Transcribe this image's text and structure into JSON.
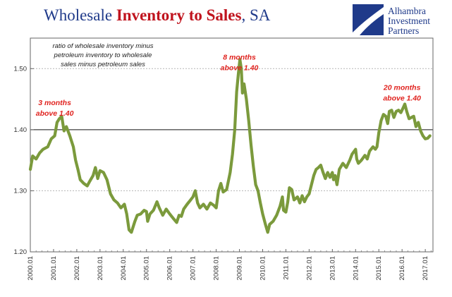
{
  "title": {
    "part1": "Wholesale ",
    "highlight": "Inventory to Sales",
    "part2": ", SA"
  },
  "logo": {
    "line1": "Alhambra",
    "line2": "Investment",
    "line3": "Partners"
  },
  "colors": {
    "line": "#7b9a3c",
    "title": "#1f3a8a",
    "highlight": "#c0141e",
    "annotation": "#e0221e"
  },
  "chart_data": {
    "type": "line",
    "title": "Wholesale Inventory to Sales, SA",
    "note": [
      "ratio of wholesale inventory minus",
      "petroleum inventory to wholesale",
      "sales minus petroleum sales"
    ],
    "xlim": [
      2000.0,
      2017.33
    ],
    "ylim": [
      1.2,
      1.55
    ],
    "yticks": [
      1.2,
      1.3,
      1.4,
      1.5
    ],
    "ytick_labels": [
      "1.20",
      "1.30",
      "1.40",
      "1.50"
    ],
    "xtick_labels": [
      "2000.01",
      "2001.01",
      "2002.01",
      "2003.01",
      "2004.01",
      "2005.01",
      "2006.01",
      "2007.01",
      "2008.01",
      "2009.01",
      "2010.01",
      "2011.01",
      "2012.01",
      "2013.01",
      "2014.01",
      "2015.01",
      "2016.01",
      "2017.01"
    ],
    "reference_line": 1.4,
    "grid": {
      "horizontal_dashed": [
        1.3,
        1.5
      ]
    },
    "annotations": [
      {
        "lines": [
          "3 months",
          "above 1.40"
        ],
        "x": 2001.05,
        "y": 1.44
      },
      {
        "lines": [
          "8 months",
          "above 1.40"
        ],
        "x": 2009.0,
        "y": 1.515
      },
      {
        "lines": [
          "20 months",
          "above 1.40"
        ],
        "x": 2016.0,
        "y": 1.465
      }
    ],
    "series": [
      {
        "values": [
          [
            2000.0,
            1.335
          ],
          [
            2000.1,
            1.357
          ],
          [
            2000.25,
            1.352
          ],
          [
            2000.4,
            1.362
          ],
          [
            2000.55,
            1.368
          ],
          [
            2000.75,
            1.372
          ],
          [
            2000.9,
            1.385
          ],
          [
            2001.05,
            1.39
          ],
          [
            2001.15,
            1.412
          ],
          [
            2001.25,
            1.418
          ],
          [
            2001.35,
            1.422
          ],
          [
            2001.45,
            1.398
          ],
          [
            2001.55,
            1.405
          ],
          [
            2001.7,
            1.39
          ],
          [
            2001.85,
            1.372
          ],
          [
            2001.95,
            1.35
          ],
          [
            2002.05,
            1.335
          ],
          [
            2002.15,
            1.318
          ],
          [
            2002.3,
            1.312
          ],
          [
            2002.45,
            1.308
          ],
          [
            2002.55,
            1.315
          ],
          [
            2002.7,
            1.325
          ],
          [
            2002.8,
            1.338
          ],
          [
            2002.9,
            1.32
          ],
          [
            2003.0,
            1.333
          ],
          [
            2003.15,
            1.33
          ],
          [
            2003.3,
            1.318
          ],
          [
            2003.45,
            1.295
          ],
          [
            2003.6,
            1.285
          ],
          [
            2003.75,
            1.28
          ],
          [
            2003.9,
            1.272
          ],
          [
            2004.05,
            1.278
          ],
          [
            2004.15,
            1.262
          ],
          [
            2004.25,
            1.236
          ],
          [
            2004.35,
            1.232
          ],
          [
            2004.5,
            1.25
          ],
          [
            2004.6,
            1.26
          ],
          [
            2004.75,
            1.262
          ],
          [
            2004.9,
            1.268
          ],
          [
            2005.0,
            1.266
          ],
          [
            2005.05,
            1.25
          ],
          [
            2005.15,
            1.262
          ],
          [
            2005.3,
            1.268
          ],
          [
            2005.45,
            1.282
          ],
          [
            2005.55,
            1.272
          ],
          [
            2005.7,
            1.26
          ],
          [
            2005.85,
            1.27
          ],
          [
            2006.0,
            1.262
          ],
          [
            2006.15,
            1.255
          ],
          [
            2006.3,
            1.248
          ],
          [
            2006.4,
            1.26
          ],
          [
            2006.5,
            1.258
          ],
          [
            2006.6,
            1.27
          ],
          [
            2006.75,
            1.278
          ],
          [
            2006.9,
            1.285
          ],
          [
            2007.0,
            1.29
          ],
          [
            2007.1,
            1.3
          ],
          [
            2007.2,
            1.28
          ],
          [
            2007.3,
            1.272
          ],
          [
            2007.45,
            1.278
          ],
          [
            2007.6,
            1.27
          ],
          [
            2007.75,
            1.28
          ],
          [
            2007.9,
            1.276
          ],
          [
            2008.0,
            1.272
          ],
          [
            2008.1,
            1.3
          ],
          [
            2008.2,
            1.312
          ],
          [
            2008.3,
            1.298
          ],
          [
            2008.45,
            1.302
          ],
          [
            2008.6,
            1.33
          ],
          [
            2008.7,
            1.36
          ],
          [
            2008.8,
            1.4
          ],
          [
            2008.88,
            1.462
          ],
          [
            2008.95,
            1.49
          ],
          [
            2009.02,
            1.515
          ],
          [
            2009.08,
            1.5
          ],
          [
            2009.13,
            1.46
          ],
          [
            2009.2,
            1.475
          ],
          [
            2009.3,
            1.45
          ],
          [
            2009.4,
            1.415
          ],
          [
            2009.5,
            1.375
          ],
          [
            2009.6,
            1.34
          ],
          [
            2009.7,
            1.31
          ],
          [
            2009.8,
            1.3
          ],
          [
            2009.9,
            1.28
          ],
          [
            2010.0,
            1.262
          ],
          [
            2010.12,
            1.245
          ],
          [
            2010.22,
            1.232
          ],
          [
            2010.3,
            1.245
          ],
          [
            2010.45,
            1.25
          ],
          [
            2010.6,
            1.26
          ],
          [
            2010.75,
            1.275
          ],
          [
            2010.85,
            1.29
          ],
          [
            2010.9,
            1.268
          ],
          [
            2011.0,
            1.265
          ],
          [
            2011.08,
            1.282
          ],
          [
            2011.15,
            1.305
          ],
          [
            2011.25,
            1.302
          ],
          [
            2011.35,
            1.285
          ],
          [
            2011.5,
            1.29
          ],
          [
            2011.6,
            1.28
          ],
          [
            2011.7,
            1.292
          ],
          [
            2011.8,
            1.282
          ],
          [
            2011.9,
            1.29
          ],
          [
            2012.0,
            1.295
          ],
          [
            2012.1,
            1.31
          ],
          [
            2012.2,
            1.325
          ],
          [
            2012.3,
            1.335
          ],
          [
            2012.4,
            1.338
          ],
          [
            2012.5,
            1.342
          ],
          [
            2012.6,
            1.33
          ],
          [
            2012.7,
            1.32
          ],
          [
            2012.8,
            1.33
          ],
          [
            2012.9,
            1.322
          ],
          [
            2013.0,
            1.33
          ],
          [
            2013.05,
            1.318
          ],
          [
            2013.12,
            1.325
          ],
          [
            2013.2,
            1.31
          ],
          [
            2013.3,
            1.335
          ],
          [
            2013.45,
            1.345
          ],
          [
            2013.6,
            1.338
          ],
          [
            2013.75,
            1.35
          ],
          [
            2013.85,
            1.36
          ],
          [
            2014.0,
            1.368
          ],
          [
            2014.05,
            1.352
          ],
          [
            2014.12,
            1.345
          ],
          [
            2014.25,
            1.35
          ],
          [
            2014.4,
            1.358
          ],
          [
            2014.5,
            1.352
          ],
          [
            2014.6,
            1.365
          ],
          [
            2014.75,
            1.372
          ],
          [
            2014.85,
            1.368
          ],
          [
            2014.92,
            1.372
          ],
          [
            2015.0,
            1.395
          ],
          [
            2015.05,
            1.405
          ],
          [
            2015.1,
            1.415
          ],
          [
            2015.2,
            1.425
          ],
          [
            2015.3,
            1.422
          ],
          [
            2015.38,
            1.41
          ],
          [
            2015.45,
            1.43
          ],
          [
            2015.55,
            1.432
          ],
          [
            2015.65,
            1.42
          ],
          [
            2015.75,
            1.43
          ],
          [
            2015.85,
            1.432
          ],
          [
            2015.95,
            1.428
          ],
          [
            2016.05,
            1.436
          ],
          [
            2016.12,
            1.442
          ],
          [
            2016.2,
            1.43
          ],
          [
            2016.3,
            1.418
          ],
          [
            2016.4,
            1.42
          ],
          [
            2016.5,
            1.422
          ],
          [
            2016.6,
            1.405
          ],
          [
            2016.7,
            1.412
          ],
          [
            2016.8,
            1.398
          ],
          [
            2016.9,
            1.39
          ],
          [
            2017.0,
            1.385
          ],
          [
            2017.1,
            1.386
          ],
          [
            2017.2,
            1.39
          ]
        ]
      }
    ]
  }
}
